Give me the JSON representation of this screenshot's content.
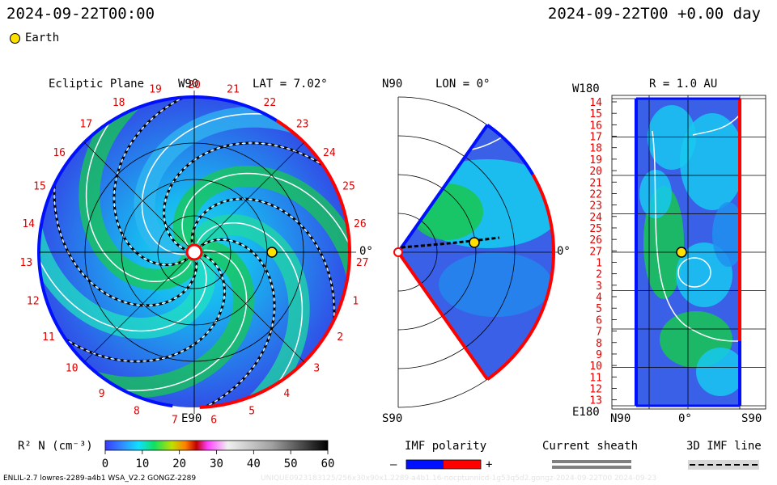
{
  "header": {
    "datetime": "2024-09-22T00:00",
    "forecast": "2024-09-22T00 +0.00 day",
    "legend_marker": "Earth"
  },
  "panels": {
    "ecliptic": {
      "title": "Ecliptic Plane",
      "top": "W90",
      "bottom": "E90",
      "lat": "LAT = 7.02°",
      "right": "0°"
    },
    "meridional": {
      "top": "N90",
      "lon": "LON = 0°",
      "bottom": "S90",
      "right": "0°"
    },
    "radial": {
      "top_left": "W180",
      "r": "R = 1.0 AU",
      "bottom_left": "E180",
      "x_ticks": [
        "N90",
        "0°",
        "S90"
      ]
    }
  },
  "colors": {
    "background_blue": "#3050e8",
    "mid_cyan": "#10c8f0",
    "green": "#18c840",
    "polarity_negative": "#0010ff",
    "polarity_positive": "#ff0000",
    "earth": "#ffe000"
  },
  "chart_data": {
    "type": "heatmap",
    "quantity": "R² N (cm⁻³)",
    "earth_position": {
      "r_au": 1.0,
      "lat_deg": 7.02,
      "lon_deg": 0
    },
    "carrington_labels_ecliptic": [
      "20",
      "21",
      "22",
      "23",
      "24",
      "25",
      "26",
      "27",
      "1",
      "2",
      "3",
      "4",
      "5",
      "6",
      "7",
      "8",
      "9",
      "10",
      "11",
      "12",
      "13",
      "14",
      "15",
      "16",
      "17",
      "18",
      "19"
    ],
    "radial_y_labels": [
      "14",
      "15",
      "16",
      "17",
      "18",
      "19",
      "20",
      "21",
      "22",
      "23",
      "24",
      "25",
      "26",
      "27",
      "1",
      "2",
      "3",
      "4",
      "5",
      "6",
      "7",
      "8",
      "9",
      "10",
      "11",
      "12",
      "13"
    ],
    "colorbar": {
      "label": "R² N (cm⁻³)",
      "range": [
        0,
        60
      ],
      "ticks": [
        0,
        10,
        20,
        30,
        40,
        50,
        60
      ]
    }
  },
  "legends": {
    "imf_polarity": {
      "title": "IMF polarity",
      "minus": "–",
      "plus": "+"
    },
    "current_sheath": {
      "title": "Current sheath"
    },
    "imf_line": {
      "title": "3D IMF line"
    }
  },
  "footer": {
    "left": "ENLIL-2.7 lowres-2289-a4b1 WSA_V2.2 GONGZ-2289",
    "right": "UNIQUE0923183125/256x30x90x1.2289-a4b1.16-nocptunnicd-1g53q5d2.gongz-2024-09-22T00   2024-09-23"
  }
}
